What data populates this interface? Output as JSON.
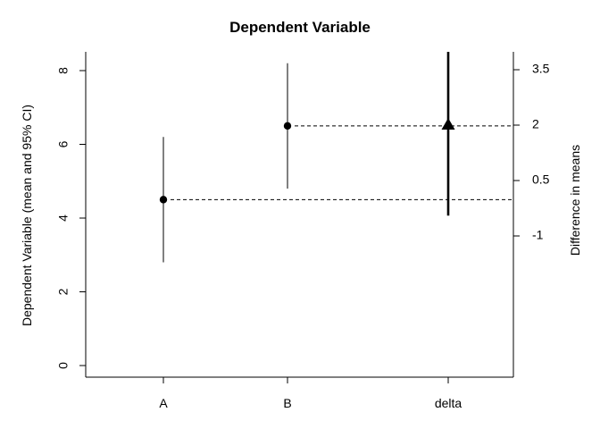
{
  "chart_data": {
    "type": "scatter",
    "title": "Dependent Variable",
    "ylabel": "Dependent Variable (mean and 95% CI)",
    "ylabel_right": "Difference in means",
    "categories": [
      "A",
      "B",
      "delta"
    ],
    "ylim": [
      0,
      8.3
    ],
    "yticks": [
      0,
      2,
      4,
      6,
      8
    ],
    "ytick_labels": [
      "0",
      "2",
      "4",
      "6",
      "8"
    ],
    "right_axis": {
      "ylim": [
        -1,
        3.8
      ],
      "yticks": [
        -1,
        0.5,
        2,
        3.5
      ],
      "ytick_labels": [
        "-1",
        "0.5",
        "2",
        "3.5"
      ]
    },
    "groups": [
      {
        "category": "A",
        "mean": 4.5,
        "ci": [
          2.8,
          6.2
        ],
        "marker": "circle"
      },
      {
        "category": "B",
        "mean": 6.5,
        "ci": [
          4.8,
          8.2
        ],
        "marker": "circle"
      }
    ],
    "difference": {
      "category": "delta",
      "value": 2.0,
      "ci": [
        -0.45,
        4.45
      ],
      "marker": "triangle"
    },
    "reference_lines": [
      {
        "from": "A",
        "value": 4.5,
        "style": "dashed"
      },
      {
        "from": "B",
        "value": 6.5,
        "style": "dashed"
      }
    ],
    "grid": false,
    "legend": "none"
  }
}
